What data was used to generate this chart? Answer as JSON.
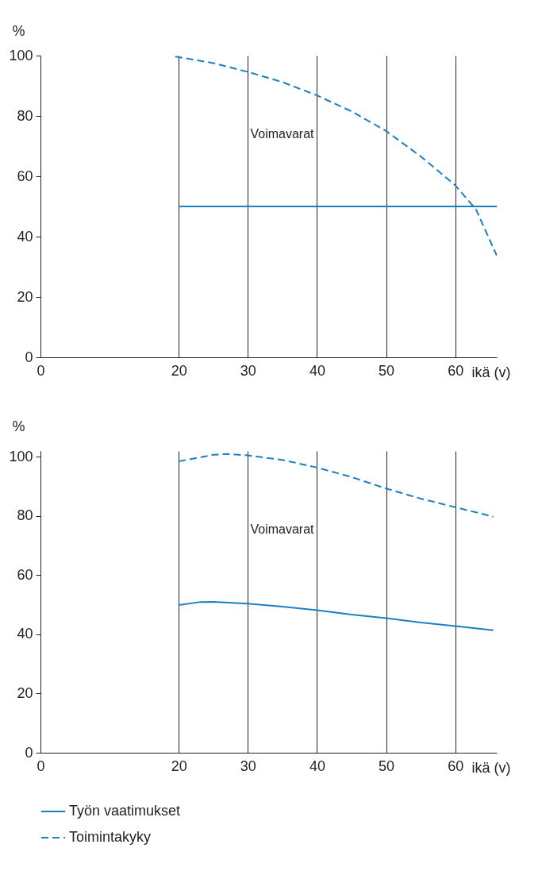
{
  "chart_data": [
    {
      "type": "line",
      "ylabel": "%",
      "xlabel": "ikä (v)",
      "xlim": [
        0,
        66
      ],
      "xticks": [
        0,
        20,
        30,
        40,
        50,
        60
      ],
      "ylim": [
        0,
        100
      ],
      "yticks": [
        0,
        20,
        40,
        60,
        80,
        100
      ],
      "grid": "x",
      "annotations": [
        "Voimavarat"
      ],
      "series": [
        {
          "color": "#1b7fc4",
          "line_style": "solid",
          "x": [
            20,
            66
          ],
          "values": [
            50,
            50
          ]
        },
        {
          "color": "#1b7fc4",
          "line_style": "dashed",
          "x": [
            19.5,
            20,
            25,
            30,
            35,
            40,
            45,
            50,
            55,
            60,
            63,
            66
          ],
          "values": [
            99.7,
            99.5,
            97.5,
            94.6,
            91.2,
            86.8,
            81.5,
            75,
            66.6,
            57,
            49,
            33.7
          ]
        }
      ]
    },
    {
      "type": "line",
      "ylabel": "%",
      "xlabel": "ikä (v)",
      "xlim": [
        0,
        66
      ],
      "xticks": [
        0,
        20,
        30,
        40,
        50,
        60
      ],
      "ylim": [
        0,
        102
      ],
      "yticks": [
        0,
        20,
        40,
        60,
        80,
        100
      ],
      "grid": "x",
      "legend": "bottom",
      "annotations": [
        "Voimavarat"
      ],
      "series": [
        {
          "name": "Työn vaatimukset",
          "color": "#1b7fc4",
          "line_style": "solid",
          "x": [
            20,
            23,
            25,
            30,
            35,
            40,
            45,
            50,
            55,
            60,
            65.5
          ],
          "values": [
            49.9,
            50.9,
            51,
            50.4,
            49.4,
            48.2,
            46.7,
            45.5,
            44,
            42.8,
            41.4
          ]
        },
        {
          "name": "Toimintakyky",
          "color": "#1b7fc4",
          "line_style": "dashed",
          "x": [
            20,
            25,
            27,
            30,
            35,
            40,
            45,
            50,
            55,
            60,
            65.5
          ],
          "values": [
            98.5,
            100.7,
            101,
            100.5,
            99,
            96.4,
            93.2,
            89.3,
            85.9,
            83,
            79.8
          ]
        }
      ]
    }
  ]
}
